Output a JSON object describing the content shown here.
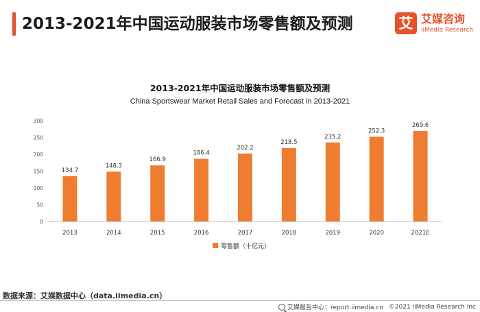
{
  "header": {
    "title": "2013-2021年中国运动服装市场零售额及预测"
  },
  "logo": {
    "glyph": "艾",
    "name_cn": "艾媒咨询",
    "name_en": "iiMedia Research"
  },
  "chart_data": {
    "type": "bar",
    "title": "2013-2021年中国运动服装市场零售额及预测",
    "subtitle": "China Sportswear Market Retail Sales and Forecast  in 2013-2021",
    "categories": [
      "2013",
      "2014",
      "2015",
      "2016",
      "2017",
      "2018",
      "2019",
      "2020",
      "2021E"
    ],
    "series": [
      {
        "name": "零售额（十亿元）",
        "values": [
          134.7,
          148.3,
          166.9,
          186.4,
          202.2,
          218.5,
          235.2,
          252.3,
          269.6
        ],
        "color": "#ee7d31"
      }
    ],
    "y_ticks": [
      "0",
      "50",
      "100",
      "150",
      "200",
      "250",
      "300"
    ],
    "ylim": [
      0,
      300
    ],
    "grid": false,
    "legend_position": "bottom-center",
    "data_labels": [
      "134.7",
      "148.3",
      "166.9",
      "186.4",
      "202.2",
      "218.5",
      "235.2",
      "252.3",
      "269.6"
    ]
  },
  "footer": {
    "source": "数据来源：艾媒数据中心（data.iimedia.cn）",
    "report_center": "艾媒报告中心：report.iimedia.cn",
    "copyright": "©2021  iiMedia Research  Inc"
  },
  "colors": {
    "accent": "#e8502a",
    "bar": "#ee7d31"
  }
}
